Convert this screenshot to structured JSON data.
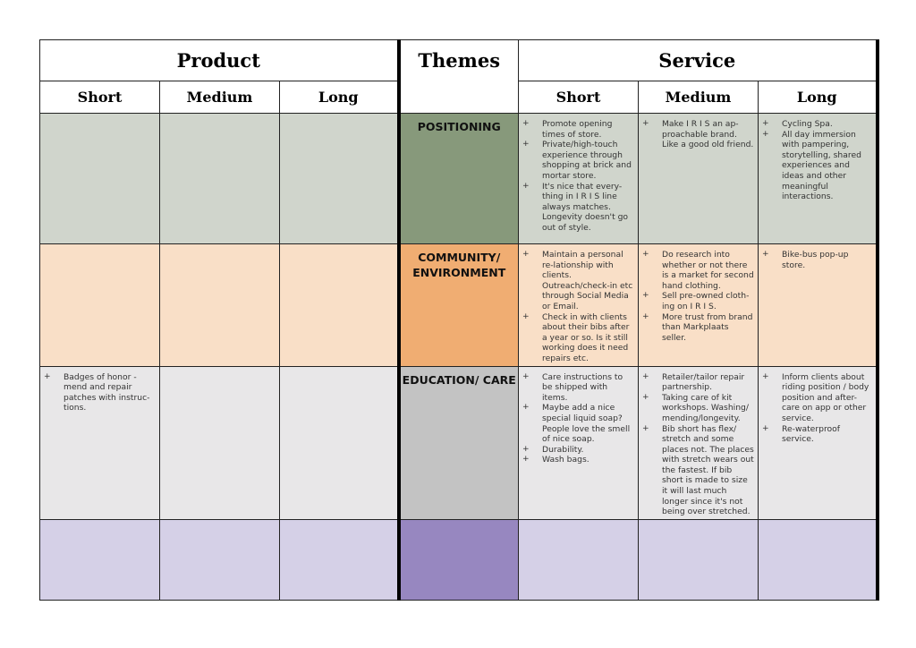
{
  "headers": {
    "product": "Product",
    "themes": "Themes",
    "service": "Service",
    "short": "Short",
    "medium": "Medium",
    "long": "Long"
  },
  "rows": [
    {
      "theme": "POSITIONING",
      "product": [
        [],
        [],
        []
      ],
      "service": [
        [
          "Promote opening times of store.",
          "Private/high-touch experience through shopping at brick and mortar store.",
          "It's nice that every-thing in I R I S line always matches. Longevity doesn't go out of style."
        ],
        [
          "Make I R I S an ap-proachable brand. Like a good old friend."
        ],
        [
          "Cycling Spa.",
          "All day immersion with  pampering, storytelling, shared experiences and ideas and other meaningful interactions."
        ]
      ]
    },
    {
      "theme": "COMMUNITY/ ENVIRONMENT",
      "product": [
        [],
        [],
        []
      ],
      "service": [
        [
          "Maintain a personal re-lationship with clients. Outreach/check-in etc through Social Media or Email.",
          "Check in with clients about their bibs after a year or so. Is it still working does it need repairs etc."
        ],
        [
          "Do research into whether or not there is a market for second hand clothing.",
          "Sell pre-owned cloth-ing on I R I S.",
          "More trust from brand than Markplaats seller."
        ],
        [
          "Bike-bus pop-up store."
        ]
      ]
    },
    {
      "theme": "EDUCATION/ CARE",
      "product": [
        [
          "Badges of honor - mend and repair patches with instruc-tions."
        ],
        [],
        []
      ],
      "service": [
        [
          "Care instructions to be shipped with items.",
          "Maybe add a nice special liquid soap? People love the smell of nice soap.",
          "Durability.",
          "Wash bags."
        ],
        [
          "Retailer/tailor repair partnership.",
          "Taking care of kit workshops. Washing/ mending/longevity.",
          "Bib short has flex/ stretch and some places not. The places with stretch wears out the fastest. If bib short is made to size it will last much longer since it's not being over stretched."
        ],
        [
          "Inform clients about riding position / body position and after-care on app or other service.",
          "Re-waterproof service."
        ]
      ]
    },
    {
      "theme": "",
      "product": [
        [],
        [],
        []
      ],
      "service": [
        [],
        [],
        []
      ]
    }
  ],
  "colors": {
    "positioning": "#87997b",
    "community": "#f0ad72",
    "education": "#c3c3c3",
    "fourth": "#9787c0"
  }
}
